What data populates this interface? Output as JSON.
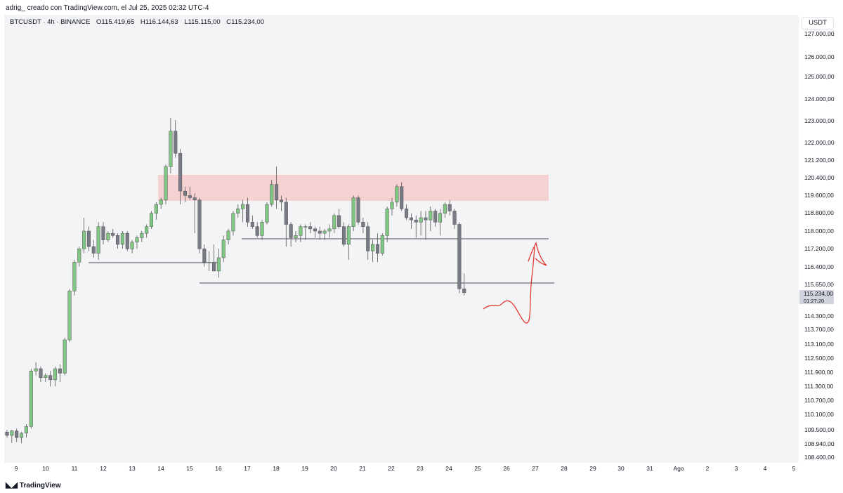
{
  "header": {
    "caption": "adrig_ creado con TradingView.com, el Jul 25, 2025 02:32 UTC-4"
  },
  "legend": {
    "symbol": "BTCUSDT · 4h · BINANCE",
    "open": "O115.419,65",
    "high": "H116.144,63",
    "low": "L115.115,00",
    "close": "C115.234,00"
  },
  "currency": "USDT",
  "price_scale": {
    "labels": [
      "127.000,00",
      "126.000,00",
      "125.000,00",
      "124.000,00",
      "123.000,00",
      "122.000,00",
      "121.200,00",
      "120.400,00",
      "119.600,00",
      "118.800,00",
      "118.000,00",
      "117.200,00",
      "116.400,00",
      "115.650,00",
      "114.300,00",
      "113.700,00",
      "113.100,00",
      "112.500,00",
      "111.900,00",
      "111.300,00",
      "110.700,00",
      "110.100,00",
      "109.500,00",
      "108.940,00",
      "108.400,00"
    ],
    "last_price": "115.234,00",
    "countdown": "01:27:20"
  },
  "time_scale": {
    "labels": [
      "9",
      "10",
      "11",
      "12",
      "13",
      "14",
      "15",
      "16",
      "17",
      "18",
      "19",
      "20",
      "21",
      "22",
      "23",
      "24",
      "25",
      "26",
      "27",
      "28",
      "29",
      "30",
      "31",
      "Ago",
      "2",
      "3",
      "4",
      "5"
    ]
  },
  "colors": {
    "up": "#81c784",
    "down": "#787b86",
    "zone": "#f5c6c6",
    "annotation": "#e53935"
  },
  "brand": {
    "logo_text": "TradingView",
    "logo_icon": "tradingview-logo-icon"
  }
}
